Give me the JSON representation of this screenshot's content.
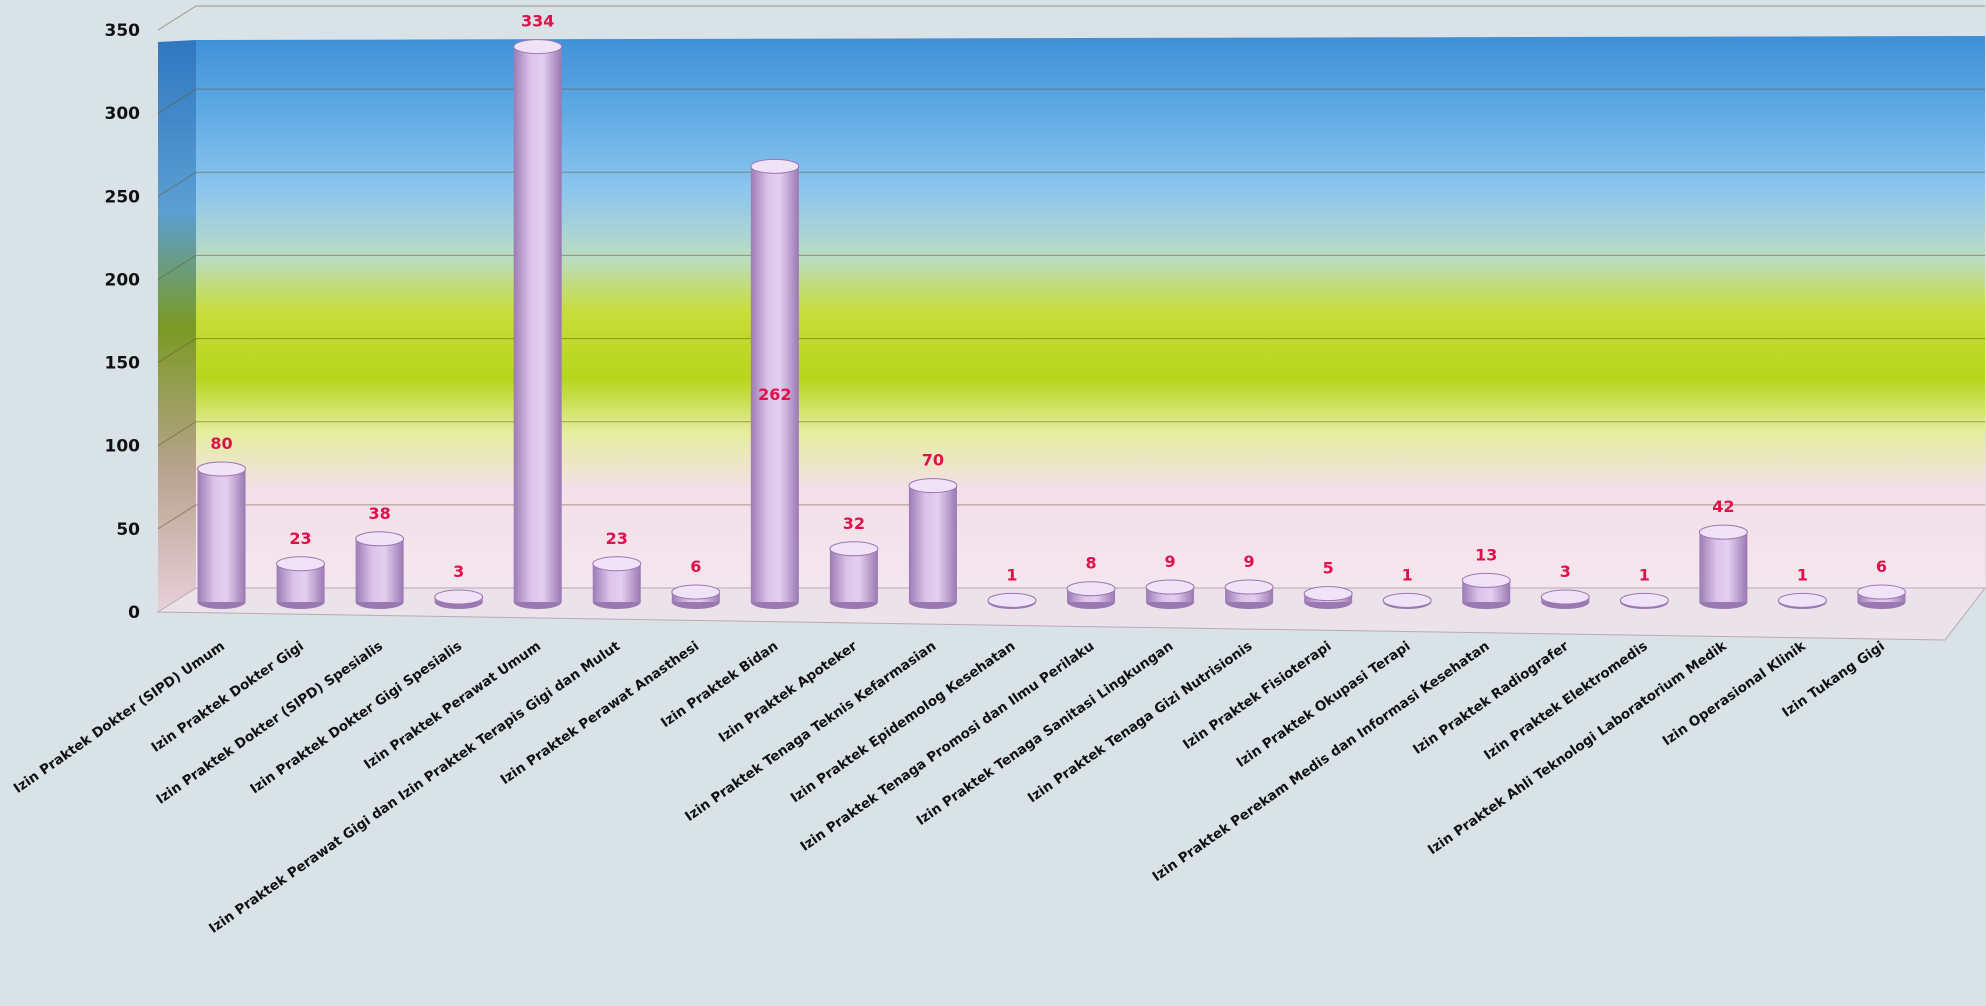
{
  "chart_data": {
    "type": "bar",
    "ylim": [
      0,
      350
    ],
    "yticks": [
      0,
      50,
      100,
      150,
      200,
      250,
      300,
      350
    ],
    "grid": true,
    "categories": [
      "Izin Praktek Dokter (SIPD) Umum",
      "Izin Praktek Dokter Gigi",
      "Izin Praktek Dokter (SIPD) Spesialis",
      "Izin Praktek Dokter Gigi Spesialis",
      "Izin Praktek Perawat Umum",
      "Izin Praktek Perawat Gigi dan Izin Praktek Terapis Gigi dan Mulut",
      "Izin Praktek Perawat Anasthesi",
      "Izin Praktek Bidan",
      "Izin Praktek Apoteker",
      "Izin Praktek Tenaga Teknis Kefarmasian",
      "Izin Praktek Epidemolog Kesehatan",
      "Izin Praktek Tenaga Promosi dan Ilmu Perilaku",
      "Izin Praktek Tenaga Sanitasi Lingkungan",
      "Izin Praktek Tenaga Gizi Nutrisionis",
      "Izin Praktek Fisioterapi",
      "Izin Praktek Okupasi Terapi",
      "Izin Praktek Perekam Medis dan Informasi Kesehatan",
      "Izin Praktek Radiografer",
      "Izin Praktek Elektromedis",
      "Izin Praktek Ahli Teknologi Laboratorium Medik",
      "Izin Operasional Klinik",
      "Izin Tukang Gigi"
    ],
    "values": [
      80,
      23,
      38,
      3,
      334,
      23,
      6,
      262,
      32,
      70,
      1,
      8,
      9,
      9,
      5,
      1,
      13,
      3,
      1,
      42,
      1,
      6
    ],
    "data_labels": [
      "80",
      "23",
      "38",
      "3",
      "334",
      "23",
      "6",
      "262",
      "32",
      "70",
      "1",
      "8",
      "9",
      "9",
      "5",
      "1",
      "13",
      "3",
      "1",
      "42",
      "1",
      "6"
    ],
    "colors": {
      "bar": "#d7b9e6",
      "bar_dark": "#9a78b2",
      "bar_top": "#f0e3f7",
      "label": "#e0114a",
      "tick": "#111111",
      "grid": "#6b5a2a"
    }
  }
}
